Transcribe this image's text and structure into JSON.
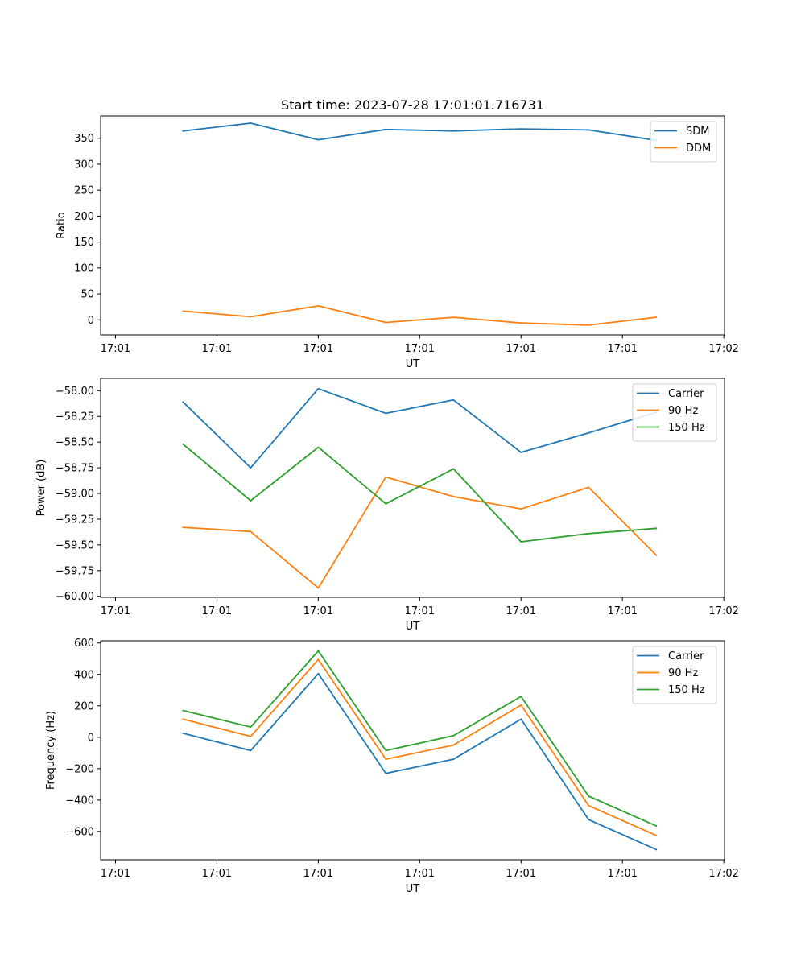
{
  "figure_title": "Start time: 2023-07-28 17:01:01.716731",
  "chart_data": [
    {
      "type": "line",
      "title": "Start time: 2023-07-28 17:01:01.716731",
      "xlabel": "UT",
      "ylabel": "Ratio",
      "x": [
        1.5,
        2.5,
        3.5,
        4.5,
        5.5,
        6.5,
        7.5,
        8.5
      ],
      "xlim": [
        0.28,
        9.51
      ],
      "xtick_values": [
        0.5,
        2.0,
        3.5,
        5.0,
        6.5,
        8.0,
        9.5
      ],
      "xtick_labels": [
        "17:01",
        "17:01",
        "17:01",
        "17:01",
        "17:01",
        "17:01",
        "17:02"
      ],
      "ylim": [
        -29,
        393
      ],
      "yticks": [
        0,
        50,
        100,
        150,
        200,
        250,
        300,
        350
      ],
      "series": [
        {
          "name": "SDM",
          "color": "#1f77b4",
          "values": [
            364,
            379,
            347,
            367,
            364,
            368,
            366,
            346
          ]
        },
        {
          "name": "DDM",
          "color": "#ff7f0e",
          "values": [
            17,
            6,
            27,
            -5,
            5,
            -6,
            -10,
            5
          ]
        }
      ],
      "legend_position": "upper right"
    },
    {
      "type": "line",
      "xlabel": "UT",
      "ylabel": "Power (dB)",
      "x": [
        1.5,
        2.5,
        3.5,
        4.5,
        5.5,
        6.5,
        7.5,
        8.5
      ],
      "xlim": [
        0.28,
        9.51
      ],
      "xtick_values": [
        0.5,
        2.0,
        3.5,
        5.0,
        6.5,
        8.0,
        9.5
      ],
      "xtick_labels": [
        "17:01",
        "17:01",
        "17:01",
        "17:01",
        "17:01",
        "17:01",
        "17:02"
      ],
      "ylim": [
        -60.01,
        -57.88
      ],
      "yticks": [
        -60.0,
        -59.75,
        -59.5,
        -59.25,
        -59.0,
        -58.75,
        -58.5,
        -58.25,
        -58.0
      ],
      "ytick_labels": [
        "−60.00",
        "−59.75",
        "−59.50",
        "−59.25",
        "−59.00",
        "−58.75",
        "−58.50",
        "−58.25",
        "−58.00"
      ],
      "series": [
        {
          "name": "Carrier",
          "color": "#1f77b4",
          "values": [
            -58.11,
            -58.75,
            -57.98,
            -58.22,
            -58.09,
            -58.6,
            -58.41,
            -58.21
          ]
        },
        {
          "name": "90 Hz",
          "color": "#ff7f0e",
          "values": [
            -59.33,
            -59.37,
            -59.92,
            -58.84,
            -59.03,
            -59.15,
            -58.94,
            -59.6
          ]
        },
        {
          "name": "150 Hz",
          "color": "#2ca02c",
          "values": [
            -58.52,
            -59.07,
            -58.55,
            -59.1,
            -58.76,
            -59.47,
            -59.39,
            -59.34
          ]
        }
      ],
      "legend_position": "upper right"
    },
    {
      "type": "line",
      "xlabel": "UT",
      "ylabel": "Frequency (Hz)",
      "x": [
        1.5,
        2.5,
        3.5,
        4.5,
        5.5,
        6.5,
        7.5,
        8.5
      ],
      "xlim": [
        0.28,
        9.51
      ],
      "xtick_values": [
        0.5,
        2.0,
        3.5,
        5.0,
        6.5,
        8.0,
        9.5
      ],
      "xtick_labels": [
        "17:01",
        "17:01",
        "17:01",
        "17:01",
        "17:01",
        "17:01",
        "17:02"
      ],
      "ylim": [
        -780,
        614
      ],
      "yticks": [
        -600,
        -400,
        -200,
        0,
        200,
        400,
        600
      ],
      "ytick_labels": [
        "−600",
        "−400",
        "−200",
        "0",
        "200",
        "400",
        "600"
      ],
      "series": [
        {
          "name": "Carrier",
          "color": "#1f77b4",
          "values": [
            25,
            -85,
            405,
            -230,
            -140,
            115,
            -525,
            -715
          ]
        },
        {
          "name": "90 Hz",
          "color": "#ff7f0e",
          "values": [
            115,
            5,
            495,
            -140,
            -50,
            205,
            -435,
            -625
          ]
        },
        {
          "name": "150 Hz",
          "color": "#2ca02c",
          "values": [
            170,
            65,
            550,
            -85,
            10,
            260,
            -375,
            -565
          ]
        }
      ],
      "legend_position": "upper right"
    }
  ]
}
